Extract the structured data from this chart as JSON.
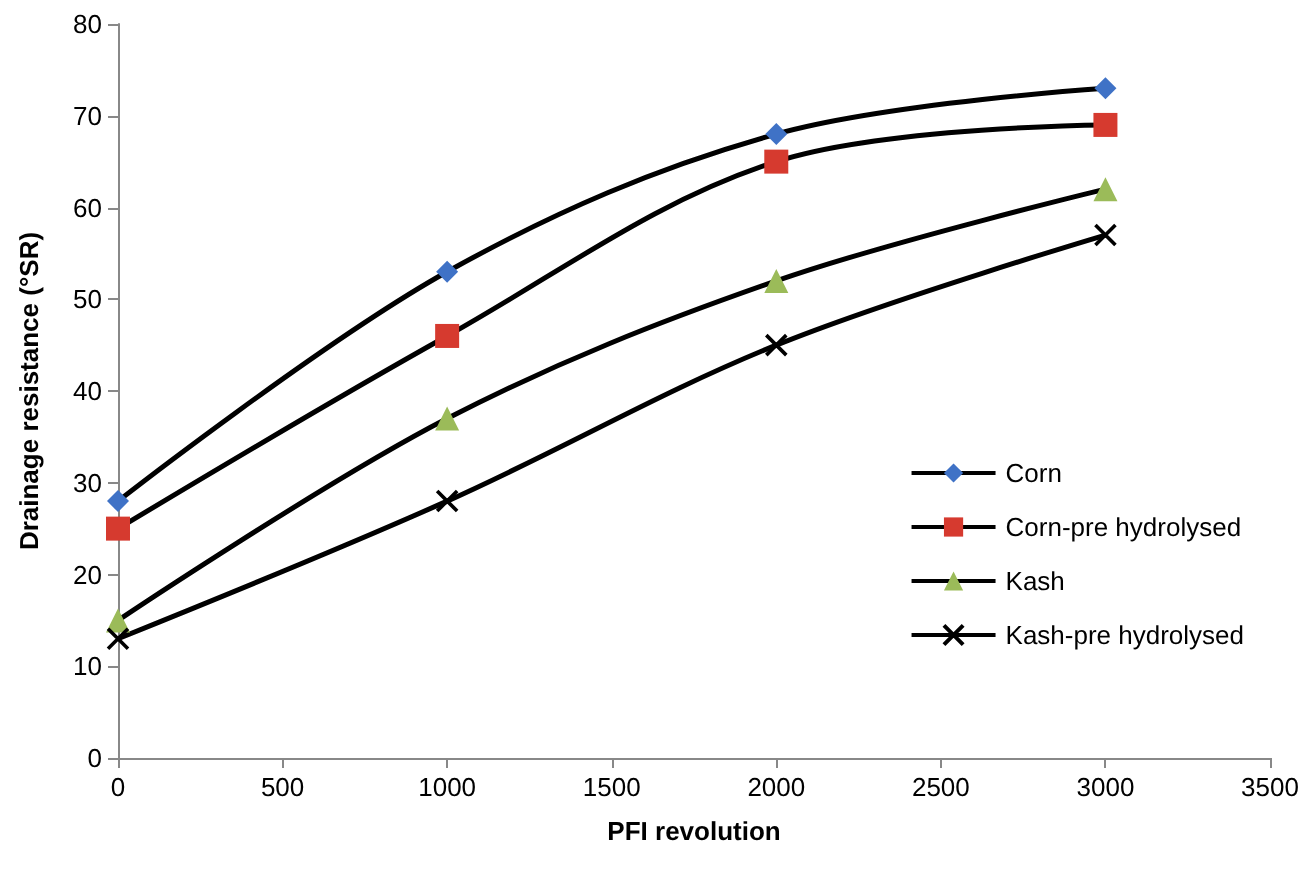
{
  "chart_data": {
    "type": "line",
    "xlabel": "PFI revolution",
    "ylabel": "Drainage resistance (°SR)",
    "x": [
      0,
      1000,
      2000,
      3000
    ],
    "series": [
      {
        "name": "Corn",
        "color": "#3f72c6",
        "marker": "diamond",
        "values": [
          28,
          53,
          68,
          73
        ]
      },
      {
        "name": "Corn-pre hydrolysed",
        "color": "#d63a2f",
        "marker": "square",
        "values": [
          25,
          46,
          65,
          69
        ]
      },
      {
        "name": "Kash",
        "color": "#9bbb59",
        "marker": "triangle",
        "values": [
          15,
          37,
          52,
          62
        ]
      },
      {
        "name": "Kash-pre hydrolysed",
        "color": "#000000",
        "marker": "cross",
        "values": [
          13,
          28,
          45,
          57
        ]
      }
    ],
    "xlim": [
      0,
      3500
    ],
    "xticks": [
      0,
      500,
      1000,
      1500,
      2000,
      2500,
      3000,
      3500
    ],
    "ylim": [
      0,
      80
    ],
    "yticks": [
      0,
      10,
      20,
      30,
      40,
      50,
      60,
      70,
      80
    ],
    "grid": false,
    "legend": "right",
    "line_style": "solid"
  }
}
